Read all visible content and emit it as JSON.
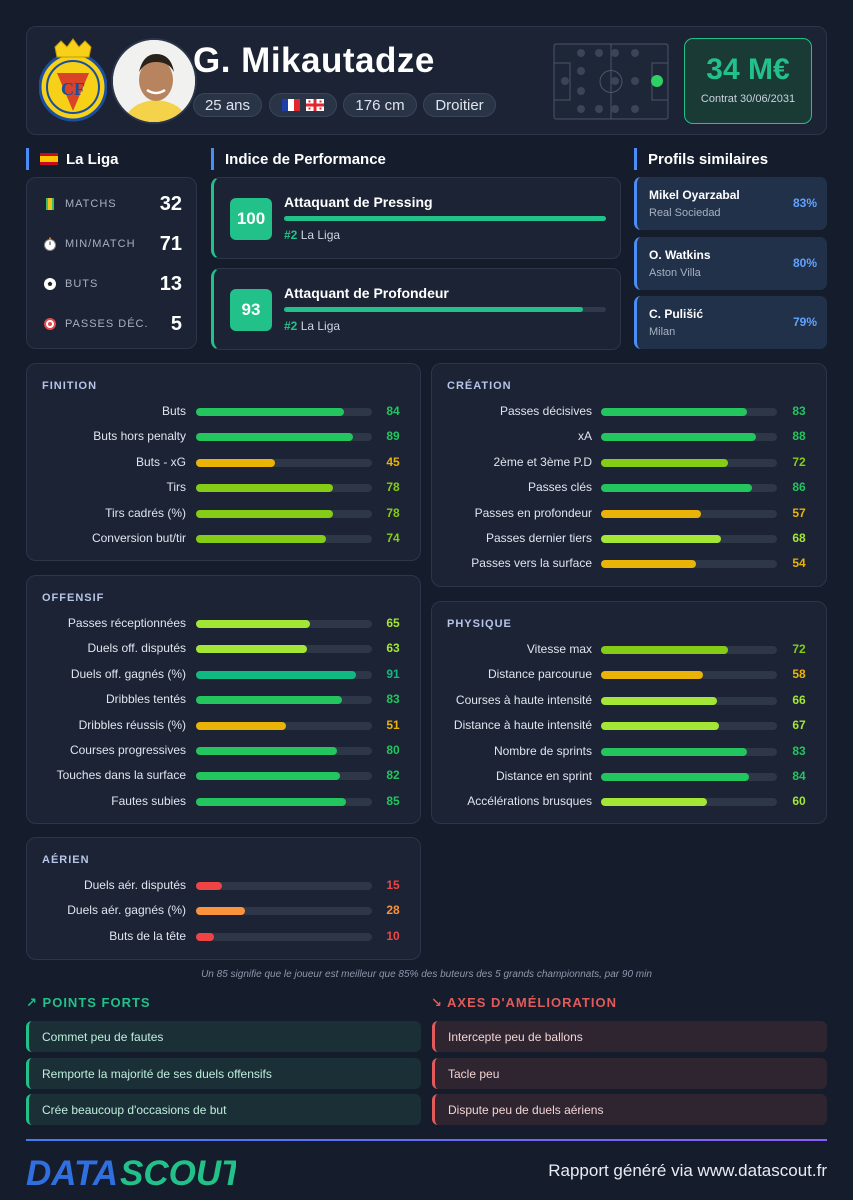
{
  "player": {
    "name": "G. Mikautadze",
    "age": "25 ans",
    "height": "176 cm",
    "foot": "Droitier",
    "value": "34 M€",
    "contract": "Contrat 30/06/2031",
    "nationality_flags": [
      "france-flag",
      "georgia-flag"
    ]
  },
  "league": {
    "name": "La Liga",
    "stats": [
      {
        "label": "MATCHS",
        "value": "32",
        "icon": "pitch-icon"
      },
      {
        "label": "MIN/MATCH",
        "value": "71",
        "icon": "stopwatch-icon"
      },
      {
        "label": "BUTS",
        "value": "13",
        "icon": "football-icon"
      },
      {
        "label": "PASSES DÉC.",
        "value": "5",
        "icon": "target-icon"
      }
    ]
  },
  "performance": {
    "heading": "Indice de Performance",
    "items": [
      {
        "score": "100",
        "title": "Attaquant de Pressing",
        "rank": "#2",
        "league": "La Liga",
        "fill": 100
      },
      {
        "score": "93",
        "title": "Attaquant de Profondeur",
        "rank": "#2",
        "league": "La Liga",
        "fill": 93
      }
    ]
  },
  "similar": {
    "heading": "Profils similaires",
    "items": [
      {
        "name": "Mikel Oyarzabal",
        "club": "Real Sociedad",
        "pct": "83%"
      },
      {
        "name": "O. Watkins",
        "club": "Aston Villa",
        "pct": "80%"
      },
      {
        "name": "C. Pulišić",
        "club": "Milan",
        "pct": "79%"
      }
    ]
  },
  "panels": {
    "finition": {
      "title": "FINITION",
      "rows": [
        {
          "label": "Buts",
          "value": 84
        },
        {
          "label": "Buts hors penalty",
          "value": 89
        },
        {
          "label": "Buts - xG",
          "value": 45
        },
        {
          "label": "Tirs",
          "value": 78
        },
        {
          "label": "Tirs cadrés (%)",
          "value": 78
        },
        {
          "label": "Conversion but/tir",
          "value": 74
        }
      ]
    },
    "creation": {
      "title": "CRÉATION",
      "rows": [
        {
          "label": "Passes décisives",
          "value": 83
        },
        {
          "label": "xA",
          "value": 88
        },
        {
          "label": "2ème et 3ème P.D",
          "value": 72
        },
        {
          "label": "Passes clés",
          "value": 86
        },
        {
          "label": "Passes en profondeur",
          "value": 57
        },
        {
          "label": "Passes dernier tiers",
          "value": 68
        },
        {
          "label": "Passes vers la surface",
          "value": 54
        }
      ]
    },
    "offensif": {
      "title": "OFFENSIF",
      "rows": [
        {
          "label": "Passes réceptionnées",
          "value": 65
        },
        {
          "label": "Duels off. disputés",
          "value": 63
        },
        {
          "label": "Duels off. gagnés (%)",
          "value": 91
        },
        {
          "label": "Dribbles tentés",
          "value": 83
        },
        {
          "label": "Dribbles réussis (%)",
          "value": 51
        },
        {
          "label": "Courses progressives",
          "value": 80
        },
        {
          "label": "Touches dans la surface",
          "value": 82
        },
        {
          "label": "Fautes subies",
          "value": 85
        }
      ]
    },
    "physique": {
      "title": "PHYSIQUE",
      "rows": [
        {
          "label": "Vitesse max",
          "value": 72
        },
        {
          "label": "Distance parcourue",
          "value": 58
        },
        {
          "label": "Courses à haute intensité",
          "value": 66
        },
        {
          "label": "Distance à haute intensité",
          "value": 67
        },
        {
          "label": "Nombre de sprints",
          "value": 83
        },
        {
          "label": "Distance en sprint",
          "value": 84
        },
        {
          "label": "Accélérations brusques",
          "value": 60
        }
      ]
    },
    "aerien": {
      "title": "AÉRIEN",
      "rows": [
        {
          "label": "Duels aér. disputés",
          "value": 15
        },
        {
          "label": "Duels aér. gagnés (%)",
          "value": 28
        },
        {
          "label": "Buts de la tête",
          "value": 10
        }
      ]
    }
  },
  "footnote": "Un 85 signifie que le joueur est meilleur que 85% des buteurs des 5 grands championnats, par 90 min",
  "strengths": {
    "heading": "POINTS FORTS",
    "items": [
      "Commet peu de fautes",
      "Remporte la majorité de ses duels offensifs",
      "Crée beaucoup d'occasions de but"
    ]
  },
  "weaknesses": {
    "heading": "AXES D'AMÉLIORATION",
    "items": [
      "Intercepte peu de ballons",
      "Tacle peu",
      "Dispute peu de duels aériens"
    ]
  },
  "brand": {
    "part1": "DATA",
    "part2": "SCOUT"
  },
  "footer": "Rapport généré via www.datascout.fr",
  "colors": {
    "accent_green": "#22c189",
    "accent_blue": "#4a8df6",
    "weak_red": "#e25a5a",
    "tier_red": "#ef4444",
    "tier_orange": "#fb923c",
    "tier_yellow": "#eab308",
    "tier_lime": "#a3e635",
    "tier_green": "#84cc16",
    "tier_strong": "#22c55e",
    "tier_top": "#10b981"
  }
}
